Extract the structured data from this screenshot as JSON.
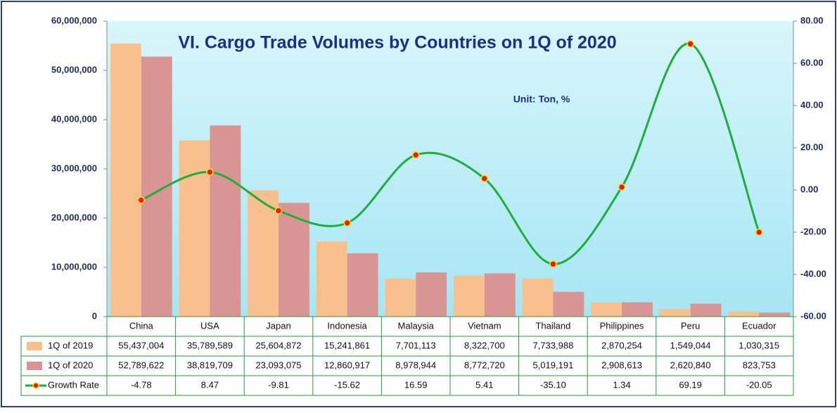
{
  "chart_data": {
    "type": "bar",
    "title": "VI. Cargo Trade Volumes by Countries on 1Q of 2020",
    "annotation": "Unit: Ton, %",
    "categories": [
      "China",
      "USA",
      "Japan",
      "Indonesia",
      "Malaysia",
      "Vietnam",
      "Thailand",
      "Philippines",
      "Peru",
      "Ecuador"
    ],
    "series": [
      {
        "name": "1Q of 2019",
        "type": "bar",
        "color": "#f9c08f",
        "values": [
          55437004,
          35789589,
          25604872,
          15241861,
          7701113,
          8322700,
          7733988,
          2870254,
          1549044,
          1030315
        ],
        "value_labels": [
          "55,437,004",
          "35,789,589",
          "25,604,872",
          "15,241,861",
          "7,701,113",
          "8,322,700",
          "7,733,988",
          "2,870,254",
          "1,549,044",
          "1,030,315"
        ]
      },
      {
        "name": "1Q of 2020",
        "type": "bar",
        "color": "#d99594",
        "values": [
          52789622,
          38819709,
          23093075,
          12860917,
          8978944,
          8772720,
          5019191,
          2908613,
          2620840,
          823753
        ],
        "value_labels": [
          "52,789,622",
          "38,819,709",
          "23,093,075",
          "12,860,917",
          "8,978,944",
          "8,772,720",
          "5,019,191",
          "2,908,613",
          "2,620,840",
          "823,753"
        ]
      },
      {
        "name": "Growth Rate",
        "type": "line",
        "axis": "y2",
        "color": "#1fae3e",
        "marker_color": "#e81c1c",
        "values": [
          -4.78,
          8.47,
          -9.81,
          -15.62,
          16.59,
          5.41,
          -35.1,
          1.34,
          69.19,
          -20.05
        ],
        "value_labels": [
          "-4.78",
          "8.47",
          "-9.81",
          "-15.62",
          "16.59",
          "5.41",
          "-35.10",
          "1.34",
          "69.19",
          "-20.05"
        ]
      }
    ],
    "ylim": [
      0,
      60000000
    ],
    "yticks": [
      0,
      {
        "value": 10000000,
        "label": "10,000,000"
      },
      {
        "value": 20000000,
        "label": "20,000,000"
      },
      {
        "value": 30000000,
        "label": "30,000,000"
      },
      {
        "value": 40000000,
        "label": "40,000,000"
      },
      {
        "value": 50000000,
        "label": "50,000,000"
      },
      {
        "value": 60000000,
        "label": "60,000,000"
      }
    ],
    "y2lim": [
      -60,
      80
    ],
    "y2ticks": [
      {
        "value": -60,
        "label": "-60.00"
      },
      {
        "value": -40,
        "label": "-40.00"
      },
      {
        "value": -20,
        "label": "-20.00"
      },
      {
        "value": 0,
        "label": "0.00"
      },
      {
        "value": 20,
        "label": "20.00"
      },
      {
        "value": 40,
        "label": "40.00"
      },
      {
        "value": 60,
        "label": "60.00"
      },
      {
        "value": 80,
        "label": "80.00"
      }
    ]
  }
}
